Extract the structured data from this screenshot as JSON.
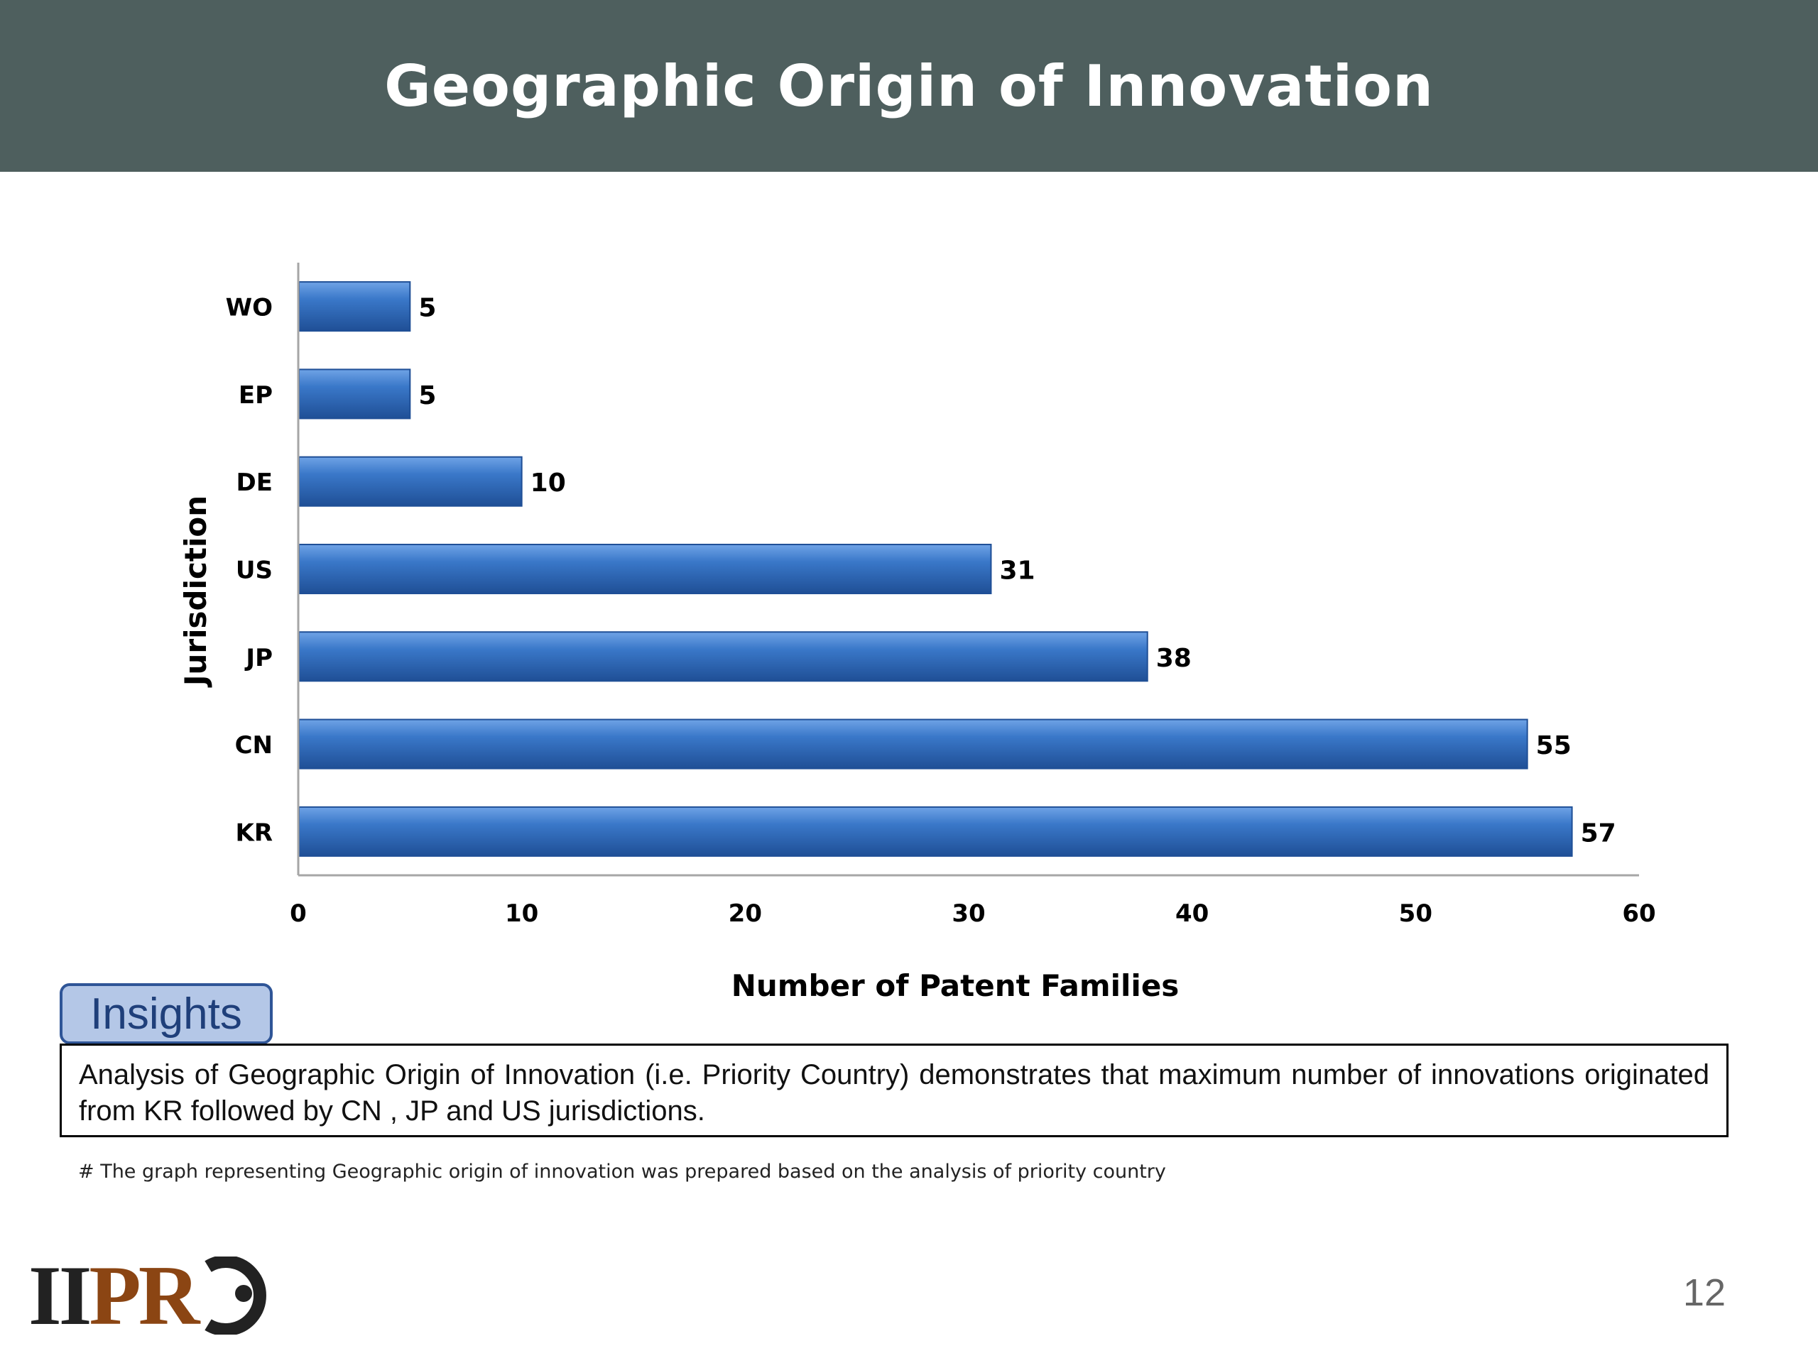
{
  "header": {
    "title": "Geographic Origin of Innovation"
  },
  "chart_data": {
    "type": "bar",
    "orientation": "horizontal",
    "categories": [
      "WO",
      "EP",
      "DE",
      "US",
      "JP",
      "CN",
      "KR"
    ],
    "values": [
      5,
      5,
      10,
      31,
      38,
      55,
      57
    ],
    "data_labels": [
      "5",
      "5",
      "10",
      "31",
      "38",
      "55",
      "57"
    ],
    "xlabel": "Number of Patent Families",
    "ylabel": "Jurisdiction",
    "xlim": [
      0,
      60
    ],
    "xticks": [
      0,
      10,
      20,
      30,
      40,
      50,
      60
    ],
    "xtick_labels": [
      "0",
      "10",
      "20",
      "30",
      "40",
      "50",
      "60"
    ],
    "grid": false,
    "legend": "none",
    "bar_color": "#3a78c9",
    "bar_color_light": "#6fa3e6",
    "bar_color_dark": "#1f4f96"
  },
  "insights": {
    "label": "Insights",
    "text": "Analysis of Geographic Origin of Innovation (i.e. Priority Country) demonstrates that maximum number of innovations originated from KR followed by CN , JP and US jurisdictions."
  },
  "footnote": "# The graph representing Geographic origin of innovation was prepared based on the analysis of priority country",
  "logo": {
    "text_dark": "II",
    "text_brown": "PR",
    "alt": "IIPRD"
  },
  "page_number": "12",
  "colors": {
    "header_bg": "#4e5f5e",
    "logo_dark": "#222222",
    "logo_brown": "#8b4513"
  }
}
